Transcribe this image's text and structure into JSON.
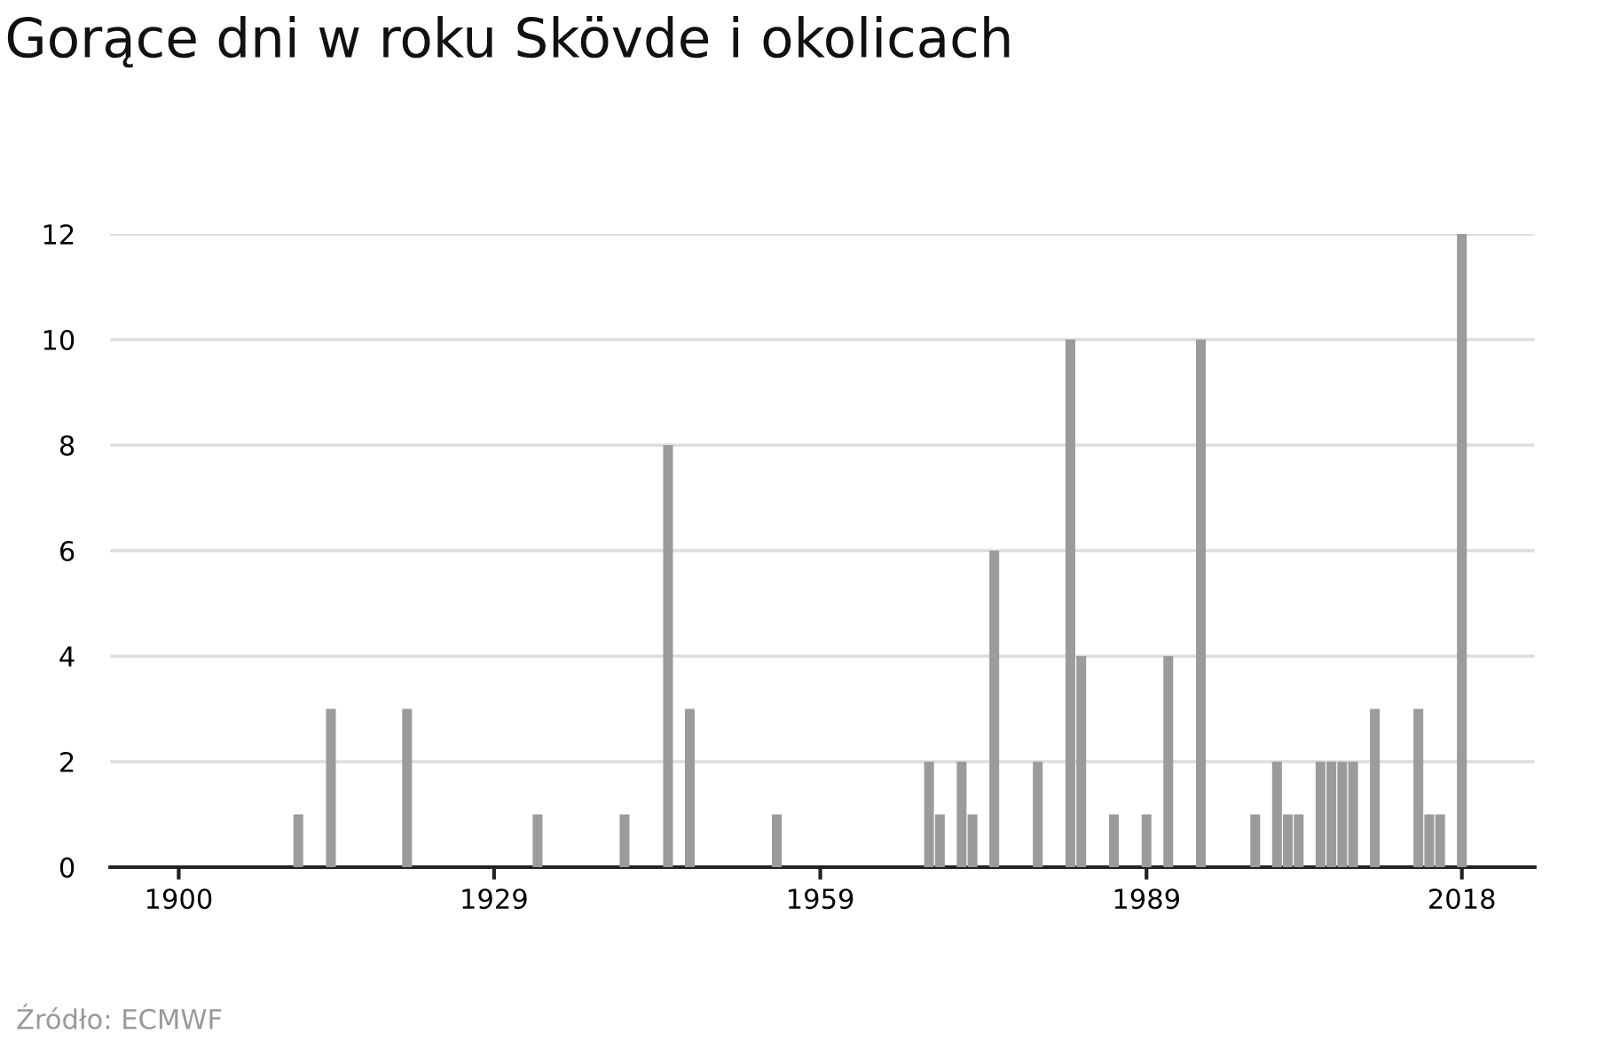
{
  "chart_data": {
    "type": "bar",
    "title": "Gorące dni w roku Skövde i okolicach",
    "x": [
      1911,
      1914,
      1921,
      1933,
      1941,
      1945,
      1947,
      1955,
      1969,
      1970,
      1972,
      1973,
      1975,
      1979,
      1982,
      1983,
      1986,
      1989,
      1991,
      1994,
      1999,
      2001,
      2002,
      2003,
      2005,
      2006,
      2007,
      2008,
      2010,
      2014,
      2015,
      2016,
      2018
    ],
    "values": [
      1,
      3,
      3,
      1,
      1,
      8,
      3,
      1,
      2,
      1,
      2,
      1,
      6,
      2,
      10,
      4,
      1,
      1,
      4,
      10,
      1,
      2,
      1,
      1,
      2,
      2,
      2,
      2,
      3,
      3,
      1,
      1,
      12
    ],
    "color": "#9b9b9b",
    "xlim": [
      1893.7,
      2024.7
    ],
    "xticks": [
      1900,
      1929,
      1959,
      1989,
      2018
    ],
    "ylim": [
      0,
      12
    ],
    "yticks": [
      0,
      2,
      4,
      6,
      8,
      10,
      12
    ],
    "grid": "y",
    "legend": false,
    "annotations": [
      "Źródło: ECMWF"
    ]
  }
}
